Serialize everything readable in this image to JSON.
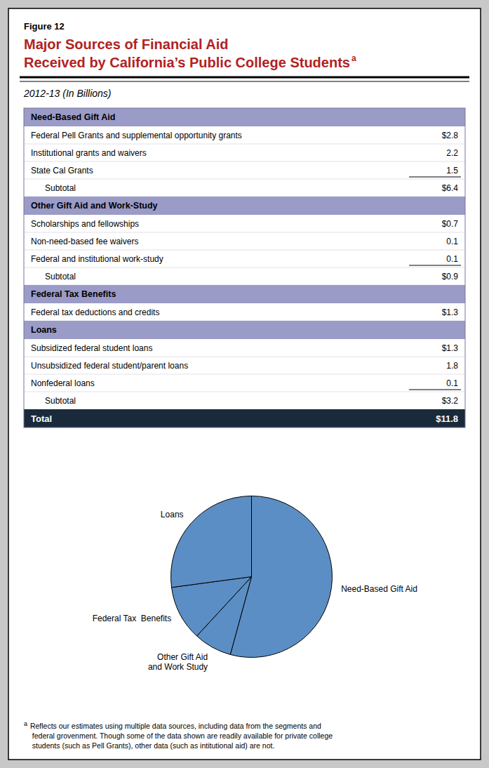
{
  "background": "#c8c8c8",
  "figure_label": "Figure 12",
  "chart_data": {
    "type": "pie",
    "title": "Major Sources of Financial Aid\nReceived by California’s Public College Students",
    "title_superscript": "a",
    "title_color": "#b22222",
    "subtitle": "2012-13 (In Billions)",
    "categories": [
      "Need-Based Gift Aid",
      "Other Gift Aid\nand Work Study",
      "Federal Tax  Benefits",
      "Loans"
    ],
    "values": [
      6.4,
      0.9,
      1.3,
      3.2
    ],
    "color": "#5b8ec4"
  },
  "table": {
    "header_color": "#9b9bc8",
    "total_color": "#1a2a3a",
    "sections": [
      {
        "header": "Need-Based Gift Aid",
        "rows": [
          {
            "label": "Federal Pell Grants and supplemental opportunity grants",
            "value": "$2.8",
            "underline": false,
            "indent": false
          },
          {
            "label": "Institutional grants and waivers",
            "value": "2.2",
            "underline": false,
            "indent": false
          },
          {
            "label": "State Cal Grants",
            "value": "1.5",
            "underline": true,
            "indent": false
          },
          {
            "label": "Subtotal",
            "value": "$6.4",
            "underline": false,
            "indent": true
          }
        ]
      },
      {
        "header": "Other Gift Aid and Work-Study",
        "rows": [
          {
            "label": "Scholarships and fellowships",
            "value": "$0.7",
            "underline": false,
            "indent": false
          },
          {
            "label": "Non-need-based fee waivers",
            "value": "0.1",
            "underline": false,
            "indent": false
          },
          {
            "label": "Federal and institutional work-study",
            "value": "0.1",
            "underline": true,
            "indent": false
          },
          {
            "label": "Subtotal",
            "value": "$0.9",
            "underline": false,
            "indent": true
          }
        ]
      },
      {
        "header": "Federal Tax Benefits",
        "rows": [
          {
            "label": "Federal tax deductions and credits",
            "value": "$1.3",
            "underline": false,
            "indent": false
          }
        ]
      },
      {
        "header": "Loans",
        "rows": [
          {
            "label": "Subsidized federal student loans",
            "value": "$1.3",
            "underline": false,
            "indent": false
          },
          {
            "label": "Unsubsidized federal student/parent loans",
            "value": "1.8",
            "underline": false,
            "indent": false
          },
          {
            "label": "Nonfederal loans",
            "value": "0.1",
            "underline": true,
            "indent": false
          },
          {
            "label": "Subtotal",
            "value": "$3.2",
            "underline": false,
            "indent": true
          }
        ]
      }
    ],
    "total_label": "Total",
    "total_value": "$11.8"
  },
  "footnote": {
    "marker": "a",
    "text": " Reflects our estimates using multiple data sources, including data from the segments and\n  federal grovenment. Though some of the data shown are readily available for private college\n  students (such as Pell Grants), other data (such as intitutional aid) are not."
  }
}
